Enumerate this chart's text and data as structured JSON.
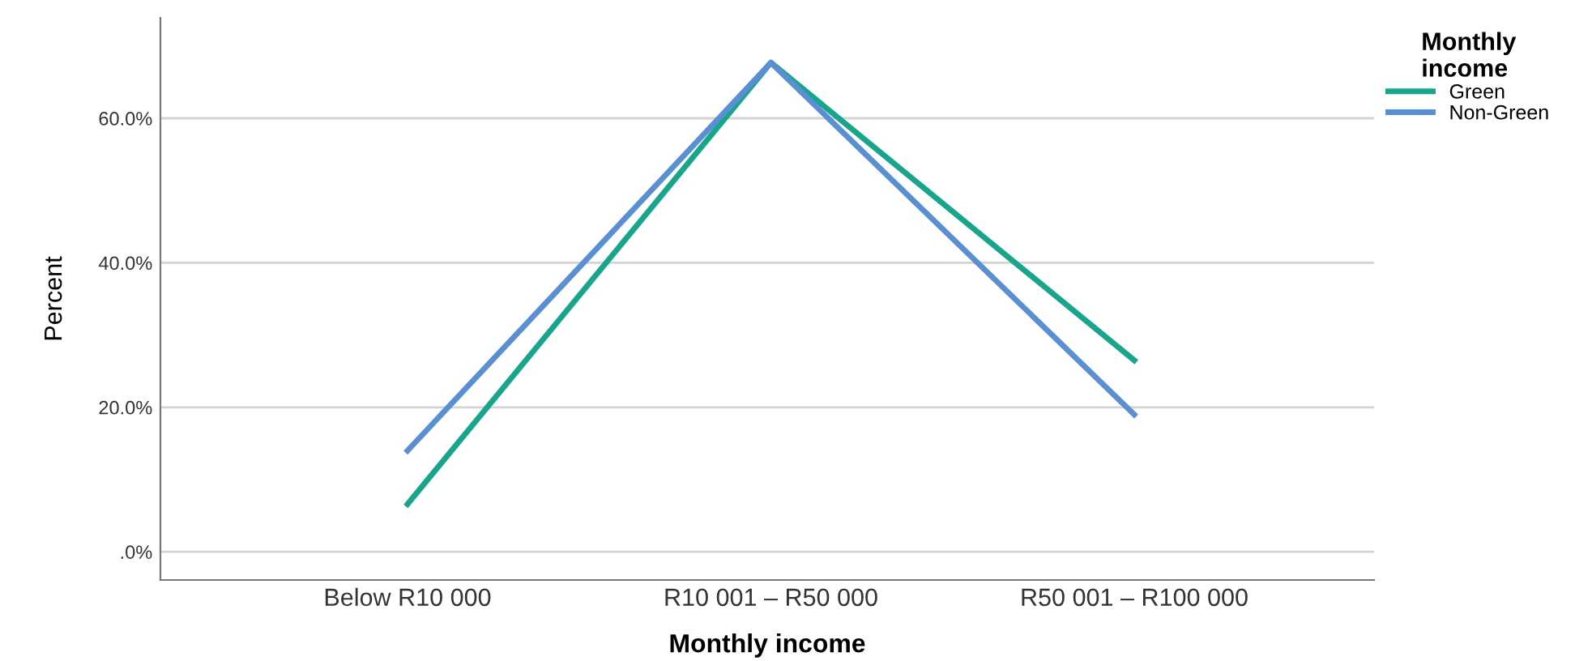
{
  "chart_data": {
    "type": "line",
    "xlabel": "Monthly income",
    "ylabel": "Percent",
    "legend_title": "Monthly\nincome",
    "categories": [
      "Below R10 000",
      "R10 001 – R50 000",
      "R50 001 – R100 000"
    ],
    "series": [
      {
        "name": "Green",
        "color": "#17a68b",
        "values": [
          6.6,
          67.7,
          26.5
        ]
      },
      {
        "name": "Non-Green",
        "color": "#5b8fd4",
        "values": [
          14.0,
          67.7,
          19.0
        ]
      }
    ],
    "ylim": [
      -3.9,
      73.9
    ],
    "yticks": [
      {
        "value": 0,
        "label": ".0%"
      },
      {
        "value": 20,
        "label": "20.0%"
      },
      {
        "value": 40,
        "label": "40.0%"
      },
      {
        "value": 60,
        "label": "60.0%"
      }
    ],
    "grid": "y",
    "legend": "top right"
  }
}
